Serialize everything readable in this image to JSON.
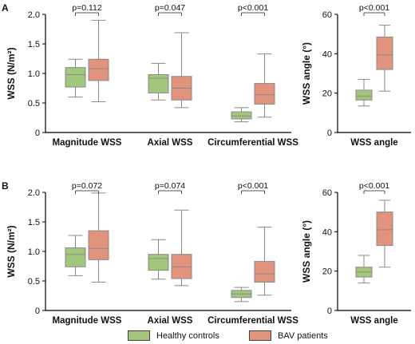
{
  "colors": {
    "healthy": "#a3c77a",
    "bav": "#e2937e",
    "axis": "#000000",
    "whisker": "#8a8a8a"
  },
  "legend": {
    "healthy_label": "Healthy controls",
    "bav_label": "BAV patients"
  },
  "chart_data": [
    {
      "type": "box",
      "panel_label": "A",
      "ylabel": "WSS (N/m²)",
      "ylim": [
        0,
        2.0
      ],
      "yticks": [
        "0",
        "0.5",
        "1.0",
        "1.5",
        "2.0"
      ],
      "categories": [
        "Magnitude WSS",
        "Axial WSS",
        "Circumferential WSS"
      ],
      "pvalues": [
        "p=0.112",
        "p=0.047",
        "p<0.001"
      ],
      "series": [
        {
          "name": "Healthy controls",
          "boxes": [
            {
              "min": 0.6,
              "q1": 0.77,
              "median": 0.98,
              "q3": 1.1,
              "max": 1.24
            },
            {
              "min": 0.55,
              "q1": 0.67,
              "median": 0.92,
              "q3": 0.98,
              "max": 1.17
            },
            {
              "min": 0.18,
              "q1": 0.23,
              "median": 0.28,
              "q3": 0.35,
              "max": 0.42
            }
          ]
        },
        {
          "name": "BAV patients",
          "boxes": [
            {
              "min": 0.52,
              "q1": 0.88,
              "median": 1.08,
              "q3": 1.24,
              "max": 1.9
            },
            {
              "min": 0.42,
              "q1": 0.55,
              "median": 0.75,
              "q3": 0.95,
              "max": 1.69
            },
            {
              "min": 0.26,
              "q1": 0.48,
              "median": 0.64,
              "q3": 0.83,
              "max": 1.33
            }
          ]
        }
      ]
    },
    {
      "type": "box",
      "panel_label": "",
      "ylabel": "WSS angle (°)",
      "ylim": [
        0,
        60
      ],
      "yticks": [
        "0",
        "20",
        "40",
        "60"
      ],
      "categories": [
        "WSS angle"
      ],
      "pvalues": [
        "p<0.001"
      ],
      "series": [
        {
          "name": "Healthy controls",
          "boxes": [
            {
              "min": 13.5,
              "q1": 16.5,
              "median": 18.5,
              "q3": 21.5,
              "max": 27.0
            }
          ]
        },
        {
          "name": "BAV patients",
          "boxes": [
            {
              "min": 21.0,
              "q1": 32.0,
              "median": 39.5,
              "q3": 48.5,
              "max": 54.5
            }
          ]
        }
      ]
    },
    {
      "type": "box",
      "panel_label": "B",
      "ylabel": "WSS (N/m²)",
      "ylim": [
        0,
        2.0
      ],
      "yticks": [
        "0",
        "0.5",
        "1.0",
        "1.5",
        "2.0"
      ],
      "categories": [
        "Magnitude WSS",
        "Axial WSS",
        "Circumferential WSS"
      ],
      "pvalues": [
        "p=0.072",
        "p=0.074",
        "p<0.001"
      ],
      "series": [
        {
          "name": "Healthy controls",
          "boxes": [
            {
              "min": 0.59,
              "q1": 0.74,
              "median": 0.95,
              "q3": 1.06,
              "max": 1.27
            },
            {
              "min": 0.53,
              "q1": 0.68,
              "median": 0.88,
              "q3": 0.95,
              "max": 1.2
            },
            {
              "min": 0.15,
              "q1": 0.22,
              "median": 0.28,
              "q3": 0.34,
              "max": 0.39
            }
          ]
        },
        {
          "name": "BAV patients",
          "boxes": [
            {
              "min": 0.48,
              "q1": 0.86,
              "median": 1.05,
              "q3": 1.35,
              "max": 1.99
            },
            {
              "min": 0.42,
              "q1": 0.54,
              "median": 0.74,
              "q3": 0.95,
              "max": 1.7
            },
            {
              "min": 0.26,
              "q1": 0.48,
              "median": 0.62,
              "q3": 0.83,
              "max": 1.41
            }
          ]
        }
      ]
    },
    {
      "type": "box",
      "panel_label": "",
      "ylabel": "WSS angle (°)",
      "ylim": [
        0,
        60
      ],
      "yticks": [
        "0",
        "20",
        "40",
        "60"
      ],
      "categories": [
        "WSS angle"
      ],
      "pvalues": [
        "p<0.001"
      ],
      "series": [
        {
          "name": "Healthy controls",
          "boxes": [
            {
              "min": 14.0,
              "q1": 17.0,
              "median": 19.5,
              "q3": 22.0,
              "max": 28.0
            }
          ]
        },
        {
          "name": "BAV patients",
          "boxes": [
            {
              "min": 22.0,
              "q1": 33.0,
              "median": 41.0,
              "q3": 50.0,
              "max": 56.0
            }
          ]
        }
      ]
    }
  ]
}
